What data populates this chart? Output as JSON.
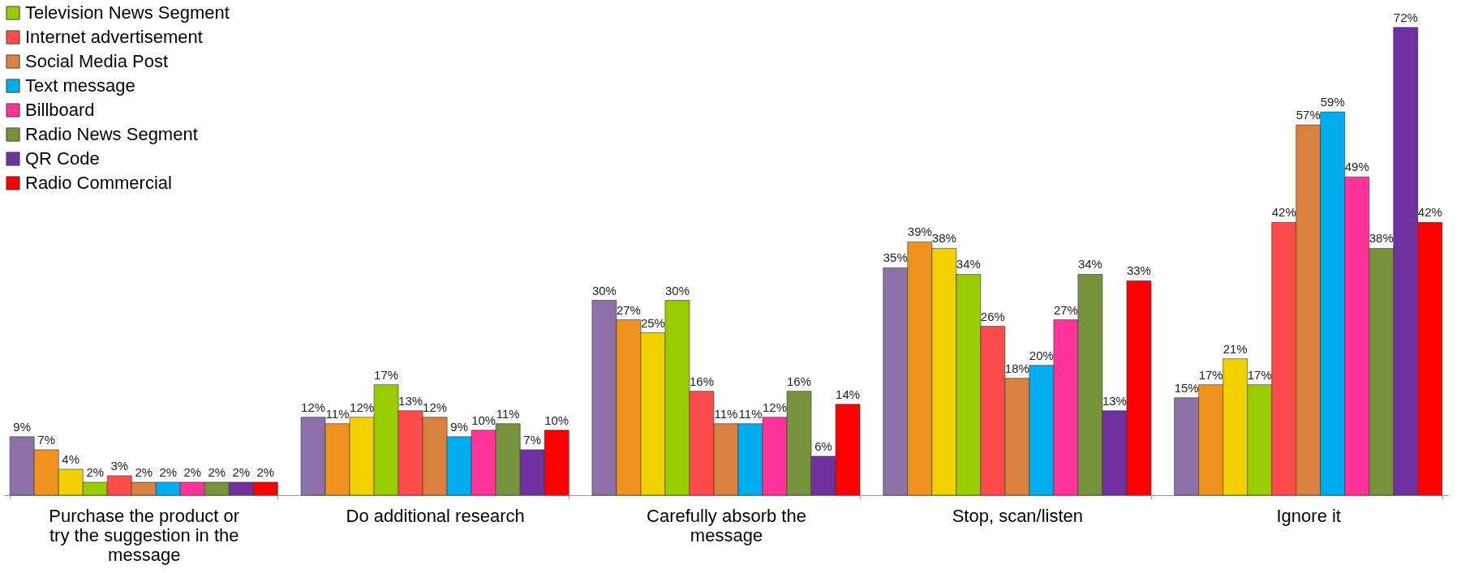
{
  "chart_data": {
    "type": "bar",
    "categories": [
      "Purchase the product or try the suggestion in the message",
      "Do additional research",
      "Carefully absorb the message",
      "Stop, scan/listen",
      "Ignore it"
    ],
    "series": [
      {
        "color": "#8c72a8",
        "values": [
          9,
          12,
          30,
          35,
          15
        ],
        "value_labels": [
          "9%",
          "12%",
          "30%",
          "35%",
          "15%"
        ]
      },
      {
        "color": "#f0921e",
        "values": [
          7,
          11,
          27,
          39,
          17
        ],
        "value_labels": [
          "7%",
          "11%",
          "27%",
          "39%",
          "17%"
        ]
      },
      {
        "color": "#f2d100",
        "values": [
          4,
          12,
          25,
          38,
          21
        ],
        "value_labels": [
          "4%",
          "12%",
          "25%",
          "38%",
          "21%"
        ]
      },
      {
        "name": "Television News Segment",
        "color": "#99cc00",
        "values": [
          2,
          17,
          30,
          34,
          17
        ],
        "value_labels": [
          "2%",
          "17%",
          "30%",
          "34%",
          "17%"
        ]
      },
      {
        "name": "Internet advertisement",
        "color": "#ff4b4b",
        "values": [
          3,
          13,
          16,
          26,
          42
        ],
        "value_labels": [
          "3%",
          "13%",
          "16%",
          "26%",
          "42%"
        ]
      },
      {
        "name": "Social Media Post",
        "color": "#d9813f",
        "values": [
          2,
          12,
          11,
          18,
          57
        ],
        "value_labels": [
          "2%",
          "12%",
          "11%",
          "18%",
          "57%"
        ]
      },
      {
        "name": "Text message",
        "color": "#00aeef",
        "values": [
          2,
          9,
          11,
          20,
          59
        ],
        "value_labels": [
          "2%",
          "9%",
          "11%",
          "20%",
          "59%"
        ]
      },
      {
        "name": "Billboard",
        "color": "#ff3399",
        "values": [
          2,
          10,
          12,
          27,
          49
        ],
        "value_labels": [
          "2%",
          "10%",
          "12%",
          "27%",
          "49%"
        ]
      },
      {
        "name": "Radio News Segment",
        "color": "#77933c",
        "values": [
          2,
          11,
          16,
          34,
          38
        ],
        "value_labels": [
          "2%",
          "11%",
          "16%",
          "34%",
          "38%"
        ]
      },
      {
        "name": "QR Code",
        "color": "#7030a0",
        "values": [
          2,
          7,
          6,
          13,
          72
        ],
        "value_labels": [
          "2%",
          "7%",
          "6%",
          "13%",
          "72%"
        ]
      },
      {
        "name": "Radio Commercial",
        "color": "#ff0000",
        "values": [
          2,
          10,
          14,
          33,
          42
        ],
        "value_labels": [
          "2%",
          "10%",
          "14%",
          "33%",
          "42%"
        ]
      }
    ],
    "legend": "top left",
    "grid": false
  }
}
